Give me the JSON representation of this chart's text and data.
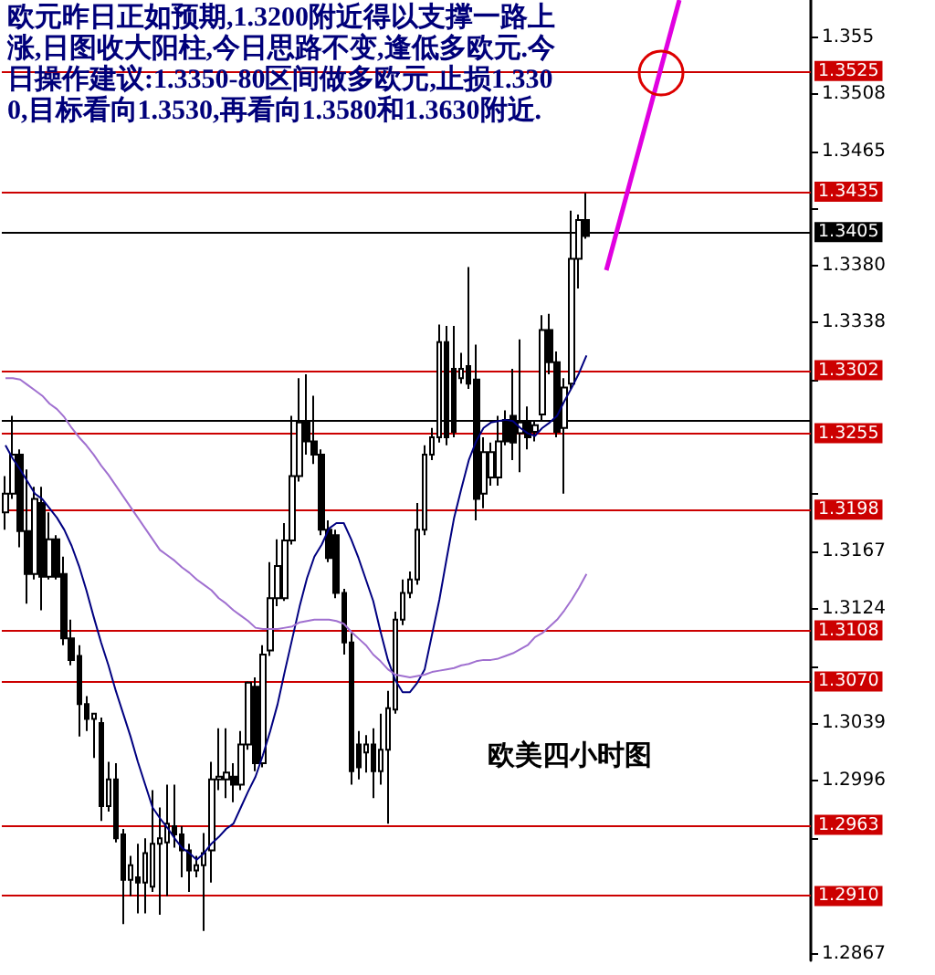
{
  "chart_data": {
    "type": "candlestick",
    "title": "欧美四小时图",
    "annotations": [
      "欧元昨日正如预期,1.3200附近得以支撑一路上涨,日图收大阳柱,今日思路不变,逢低多欧元.今日操作建议:1.3350-80区间做多欧元,止损1.3300,目标看向1.3530,再看向1.3580和1.3630附近."
    ],
    "categories": [
      null,
      null,
      null,
      null,
      null,
      null,
      null,
      null,
      null,
      null,
      null,
      null,
      null,
      null,
      null,
      null,
      null,
      null,
      null,
      null,
      null,
      null,
      null,
      null,
      null,
      null,
      null,
      null,
      null,
      null,
      null,
      null,
      null,
      null,
      null,
      null,
      null,
      null,
      null,
      null,
      null,
      null,
      null,
      null,
      null,
      null,
      null,
      null,
      null,
      null,
      null,
      null,
      null,
      null,
      null,
      null,
      null,
      null,
      null,
      null,
      null,
      null,
      null,
      null,
      null,
      null,
      null,
      null,
      null,
      null,
      null,
      null,
      null,
      null,
      null,
      null,
      null,
      null,
      null,
      null,
      null,
      null,
      null,
      null,
      null,
      null,
      null,
      null,
      null,
      null,
      null,
      null,
      null,
      null,
      null,
      null,
      null,
      null,
      null,
      null,
      null,
      null,
      null,
      null,
      null,
      null,
      null,
      null,
      null,
      null
    ],
    "ohlc": [
      [
        1.3196,
        1.3223,
        1.3183,
        1.321
      ],
      [
        1.321,
        1.3268,
        1.3206,
        1.3239
      ],
      [
        1.3239,
        1.3243,
        1.317,
        1.3182
      ],
      [
        1.3182,
        1.3228,
        1.3128,
        1.315
      ],
      [
        1.315,
        1.3215,
        1.3146,
        1.3206
      ],
      [
        1.3203,
        1.3215,
        1.3123,
        1.3148
      ],
      [
        1.3148,
        1.3196,
        1.3146,
        1.3176
      ],
      [
        1.3176,
        1.3179,
        1.3146,
        1.3148
      ],
      [
        1.315,
        1.3163,
        1.3097,
        1.3102
      ],
      [
        1.3102,
        1.3116,
        1.3082,
        1.3086
      ],
      [
        1.3089,
        1.3097,
        1.3029,
        1.3053
      ],
      [
        1.3053,
        1.3059,
        1.3033,
        1.3042
      ],
      [
        1.3042,
        1.3046,
        1.3013,
        1.3046
      ],
      [
        1.3039,
        1.3043,
        1.2966,
        1.2977
      ],
      [
        1.2977,
        1.301,
        1.2973,
        1.2997
      ],
      [
        1.2997,
        1.3009,
        1.295,
        1.2953
      ],
      [
        1.2956,
        1.296,
        1.2889,
        1.2922
      ],
      [
        1.2922,
        1.294,
        1.291,
        1.2933
      ],
      [
        1.2924,
        1.2949,
        1.2897,
        1.292
      ],
      [
        1.292,
        1.2953,
        1.2897,
        1.2942
      ],
      [
        1.2917,
        1.2989,
        1.2913,
        1.2949
      ],
      [
        1.2949,
        1.2976,
        1.2896,
        1.2953
      ],
      [
        1.295,
        1.2993,
        1.291,
        1.2964
      ],
      [
        1.2962,
        1.2993,
        1.2946,
        1.2956
      ],
      [
        1.2956,
        1.2962,
        1.2924,
        1.2944
      ],
      [
        1.2944,
        1.2949,
        1.2913,
        1.2929
      ],
      [
        1.2929,
        1.294,
        1.2924,
        1.2933
      ],
      [
        1.2933,
        1.2957,
        1.2884,
        1.2942
      ],
      [
        1.2944,
        1.301,
        1.292,
        1.2997
      ],
      [
        1.2997,
        1.3035,
        1.2989,
        1.2999
      ],
      [
        1.2997,
        1.3035,
        1.2983,
        1.3002
      ],
      [
        1.2999,
        1.3009,
        1.298,
        1.2993
      ],
      [
        1.2993,
        1.3033,
        1.2989,
        1.3023
      ],
      [
        1.3023,
        1.307,
        1.3019,
        1.3069
      ],
      [
        1.3066,
        1.3073,
        1.3003,
        1.3009
      ],
      [
        1.3009,
        1.3097,
        1.3006,
        1.309
      ],
      [
        1.3093,
        1.3159,
        1.3089,
        1.3132
      ],
      [
        1.3132,
        1.3176,
        1.3126,
        1.3156
      ],
      [
        1.3132,
        1.3188,
        1.313,
        1.3175
      ],
      [
        1.3175,
        1.3268,
        1.3172,
        1.3223
      ],
      [
        1.3223,
        1.3296,
        1.3219,
        1.3263
      ],
      [
        1.3263,
        1.3299,
        1.3239,
        1.3249
      ],
      [
        1.3249,
        1.3283,
        1.3232,
        1.3239
      ],
      [
        1.3239,
        1.3243,
        1.3179,
        1.3183
      ],
      [
        1.3183,
        1.319,
        1.3159,
        1.3162
      ],
      [
        1.3179,
        1.3183,
        1.3132,
        1.3136
      ],
      [
        1.3136,
        1.3139,
        1.309,
        1.3099
      ],
      [
        1.3099,
        1.3106,
        1.2993,
        1.3003
      ],
      [
        1.3023,
        1.3033,
        1.2997,
        1.3006
      ],
      [
        1.3017,
        1.303,
        1.3002,
        1.3023
      ],
      [
        1.3023,
        1.3035,
        1.2983,
        1.3003
      ],
      [
        1.3003,
        1.3046,
        1.2993,
        1.3019
      ],
      [
        1.3019,
        1.3063,
        1.2964,
        1.305
      ],
      [
        1.3049,
        1.3122,
        1.3046,
        1.3116
      ],
      [
        1.3116,
        1.3146,
        1.3112,
        1.3136
      ],
      [
        1.3136,
        1.3152,
        1.3132,
        1.3146
      ],
      [
        1.3146,
        1.3203,
        1.3142,
        1.3183
      ],
      [
        1.3183,
        1.3246,
        1.3179,
        1.3239
      ],
      [
        1.3239,
        1.3259,
        1.3235,
        1.3252
      ],
      [
        1.3252,
        1.3336,
        1.3248,
        1.3323
      ],
      [
        1.3323,
        1.3335,
        1.3246,
        1.3252
      ],
      [
        1.3303,
        1.3335,
        1.3252,
        1.3256
      ],
      [
        1.3296,
        1.3315,
        1.3292,
        1.3303
      ],
      [
        1.3305,
        1.3379,
        1.3288,
        1.3292
      ],
      [
        1.3295,
        1.3321,
        1.319,
        1.3206
      ],
      [
        1.321,
        1.3252,
        1.3199,
        1.3241
      ],
      [
        1.3222,
        1.3248,
        1.3216,
        1.3241
      ],
      [
        1.3222,
        1.3268,
        1.3216,
        1.3249
      ],
      [
        1.3265,
        1.3272,
        1.3246,
        1.3249
      ],
      [
        1.3268,
        1.3303,
        1.3235,
        1.3248
      ],
      [
        1.3255,
        1.3325,
        1.3226,
        1.3263
      ],
      [
        1.3263,
        1.3275,
        1.3243,
        1.3252
      ],
      [
        1.3256,
        1.3265,
        1.3249,
        1.3261
      ],
      [
        1.3269,
        1.3343,
        1.3265,
        1.3332
      ],
      [
        1.3332,
        1.3344,
        1.3299,
        1.3308
      ],
      [
        1.3308,
        1.3316,
        1.3252,
        1.3256
      ],
      [
        1.3259,
        1.3296,
        1.321,
        1.3289
      ],
      [
        1.3292,
        1.3421,
        1.3288,
        1.3385
      ],
      [
        1.3385,
        1.3418,
        1.3363,
        1.3414
      ],
      [
        1.3414,
        1.3434,
        1.34,
        1.3402
      ],
      null,
      null,
      null,
      null,
      null,
      null,
      null,
      null,
      null,
      null,
      null,
      null,
      null,
      null,
      null,
      null,
      null,
      null,
      null,
      null,
      null,
      null,
      null,
      null,
      null,
      null,
      null,
      null,
      null,
      null
    ],
    "color": "#000000",
    "series": [
      {
        "type": "line",
        "color": "#000080",
        "values": [
          1.3246,
          1.3236,
          1.3228,
          1.3219,
          1.321,
          1.3206,
          1.3199,
          1.3192,
          1.3183,
          1.3171,
          1.3156,
          1.3138,
          1.3118,
          1.3099,
          1.3082,
          1.3063,
          1.3046,
          1.3029,
          1.301,
          1.2993,
          1.2976,
          1.2968,
          1.2961,
          1.2953,
          1.2946,
          1.2942,
          1.2937,
          1.2942,
          1.2949,
          1.2954,
          1.296,
          1.2964,
          1.2976,
          1.2988,
          1.2999,
          1.3015,
          1.3033,
          1.3053,
          1.3078,
          1.3102,
          1.3126,
          1.3147,
          1.3163,
          1.3172,
          1.3184,
          1.3188,
          1.3188,
          1.3176,
          1.3162,
          1.3146,
          1.313,
          1.3107,
          1.3086,
          1.3071,
          1.3062,
          1.3062,
          1.3069,
          1.3079,
          1.3105,
          1.3131,
          1.3162,
          1.3192,
          1.3214,
          1.3235,
          1.3249,
          1.3259,
          1.3263,
          1.3264,
          1.3265,
          1.3264,
          1.3259,
          1.3255,
          1.3253,
          1.3259,
          1.3263,
          1.3268,
          1.3279,
          1.3289,
          1.33,
          1.3313,
          null,
          null,
          null,
          null,
          null,
          null,
          null,
          null,
          null,
          null,
          null,
          null,
          null,
          null,
          null,
          null,
          null,
          null,
          null,
          null,
          null,
          null,
          null,
          null,
          null,
          null,
          null,
          null,
          null,
          null
        ]
      },
      {
        "type": "line",
        "color": "#a070d0",
        "values": [
          1.3296,
          1.3296,
          1.3295,
          1.3291,
          1.3287,
          1.3283,
          1.3277,
          1.3273,
          1.3267,
          1.3259,
          1.3252,
          1.3246,
          1.3239,
          1.3231,
          1.3224,
          1.3216,
          1.3208,
          1.32,
          1.3192,
          1.3184,
          1.3176,
          1.3168,
          1.3164,
          1.316,
          1.3155,
          1.3151,
          1.3146,
          1.3142,
          1.3138,
          1.3132,
          1.3128,
          1.3123,
          1.3119,
          1.3115,
          1.311,
          1.3109,
          1.3109,
          1.3109,
          1.311,
          1.3111,
          1.3114,
          1.3115,
          1.3116,
          1.3116,
          1.3116,
          1.3115,
          1.3113,
          1.3107,
          1.3102,
          1.3097,
          1.309,
          1.3085,
          1.3079,
          1.3075,
          1.3074,
          1.3073,
          1.3074,
          1.3075,
          1.3077,
          1.3078,
          1.3079,
          1.308,
          1.3082,
          1.3083,
          1.3085,
          1.3086,
          1.3086,
          1.3087,
          1.3089,
          1.3091,
          1.3094,
          1.3097,
          1.3103,
          1.3106,
          1.3111,
          1.3116,
          1.3123,
          1.3131,
          1.314,
          1.315,
          null,
          null,
          null,
          null,
          null,
          null,
          null,
          null,
          null,
          null,
          null,
          null,
          null,
          null,
          null,
          null,
          null,
          null,
          null,
          null,
          null,
          null,
          null,
          null,
          null,
          null,
          null,
          null,
          null,
          null
        ]
      }
    ],
    "ylim": [
      1.2862,
      1.3578
    ],
    "yticks": [
      1.355,
      1.3508,
      1.3465,
      {
        "value": 1.3423,
        "label": null
      },
      {
        "value": 1.338,
        "label": "1.3380"
      },
      1.3338,
      {
        "value": 1.3295,
        "label": null
      },
      {
        "value": 1.321,
        "label": null
      },
      1.3167,
      1.3124,
      {
        "value": 1.3081,
        "label": null
      },
      1.3039,
      1.2996,
      {
        "value": 1.2953,
        "label": null
      },
      1.2867
    ],
    "ref_lines": [
      {
        "axis": "y",
        "value": 1.3525,
        "label": "1.3525",
        "color": "#cc0000"
      },
      {
        "axis": "y",
        "value": 1.3435,
        "label": "1.3435",
        "color": "#cc0000"
      },
      {
        "axis": "y",
        "value": 1.3405,
        "label": "1.3405",
        "color": "#000000",
        "line_style": "solid"
      },
      {
        "axis": "y",
        "value": 1.3302,
        "label": "1.3302",
        "color": "#cc0000"
      },
      {
        "axis": "y",
        "value": 1.3265,
        "label": null,
        "color": "#000000"
      },
      {
        "axis": "y",
        "value": 1.3255,
        "label": "1.3255",
        "color": "#cc0000"
      },
      {
        "axis": "y",
        "value": 1.3198,
        "label": "1.3198",
        "color": "#cc0000"
      },
      {
        "axis": "y",
        "value": 1.3108,
        "label": "1.3108",
        "color": "#cc0000"
      },
      {
        "axis": "y",
        "value": 1.307,
        "label": "1.3070",
        "color": "#cc0000"
      },
      {
        "axis": "y",
        "value": 1.2963,
        "label": "1.2963",
        "color": "#cc0000"
      },
      {
        "axis": "y",
        "value": 1.291,
        "label": "1.2910",
        "color": "#cc0000"
      }
    ],
    "marker": "none",
    "line_style": "solid"
  }
}
